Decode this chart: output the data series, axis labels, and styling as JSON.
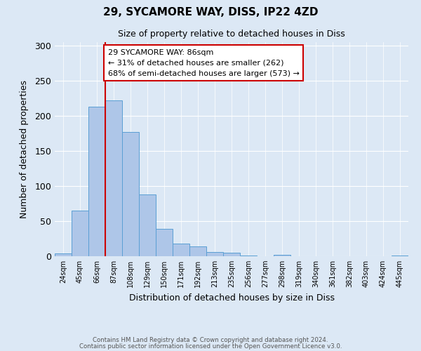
{
  "title": "29, SYCAMORE WAY, DISS, IP22 4ZD",
  "subtitle": "Size of property relative to detached houses in Diss",
  "xlabel": "Distribution of detached houses by size in Diss",
  "ylabel": "Number of detached properties",
  "bin_labels": [
    "24sqm",
    "45sqm",
    "66sqm",
    "87sqm",
    "108sqm",
    "129sqm",
    "150sqm",
    "171sqm",
    "192sqm",
    "213sqm",
    "235sqm",
    "256sqm",
    "277sqm",
    "298sqm",
    "319sqm",
    "340sqm",
    "361sqm",
    "382sqm",
    "403sqm",
    "424sqm",
    "445sqm"
  ],
  "bar_values": [
    4,
    65,
    213,
    222,
    177,
    88,
    39,
    18,
    14,
    6,
    5,
    1,
    0,
    2,
    0,
    0,
    0,
    0,
    0,
    0,
    1
  ],
  "bar_color": "#aec6e8",
  "bar_edge_color": "#5a9fd4",
  "property_label": "29 SYCAMORE WAY: 86sqm",
  "annotation_line1": "← 31% of detached houses are smaller (262)",
  "annotation_line2": "68% of semi-detached houses are larger (573) →",
  "vline_color": "#cc0000",
  "annotation_box_color": "#ffffff",
  "annotation_box_edge": "#cc0000",
  "ylim": [
    0,
    305
  ],
  "yticks": [
    0,
    50,
    100,
    150,
    200,
    250,
    300
  ],
  "footer1": "Contains HM Land Registry data © Crown copyright and database right 2024.",
  "footer2": "Contains public sector information licensed under the Open Government Licence v3.0.",
  "background_color": "#dce8f5",
  "plot_bg_color": "#dce8f5"
}
